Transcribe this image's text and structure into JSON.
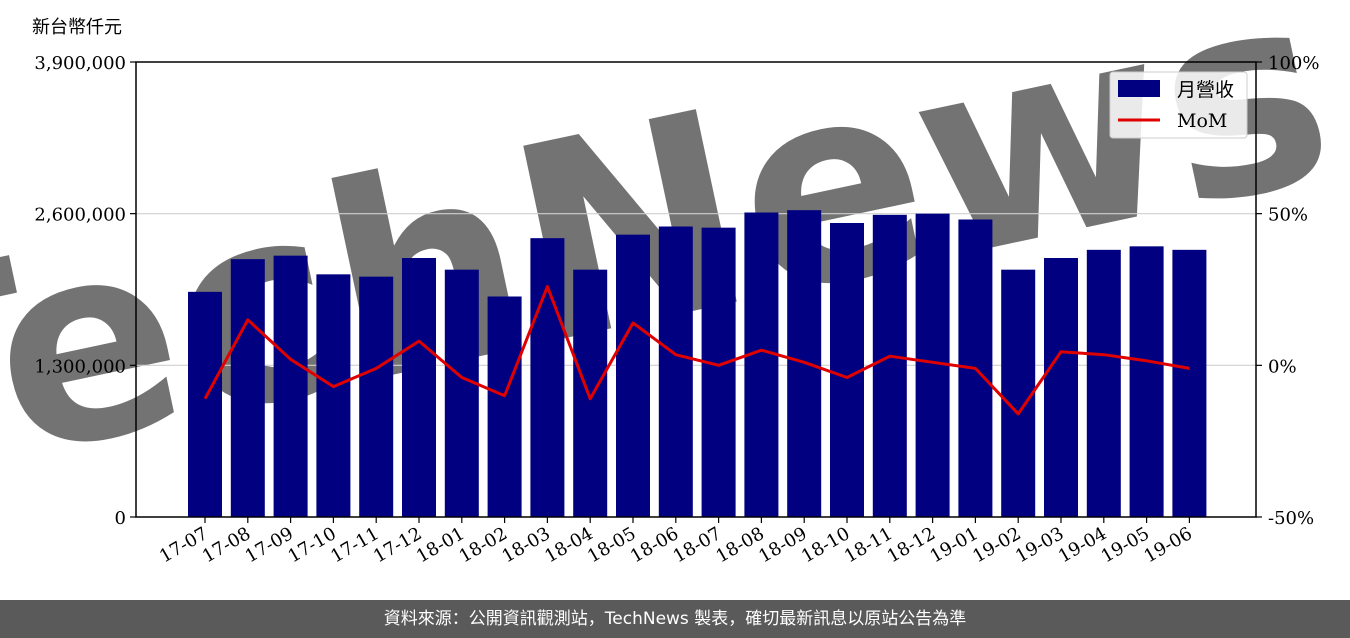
{
  "chart_data": {
    "type": "bar",
    "y_unit_label": "新台幣仟元",
    "categories": [
      "17-07",
      "17-08",
      "17-09",
      "17-10",
      "17-11",
      "17-12",
      "18-01",
      "18-02",
      "18-03",
      "18-04",
      "18-05",
      "18-06",
      "18-07",
      "18-08",
      "18-09",
      "18-10",
      "18-11",
      "18-12",
      "19-01",
      "19-02",
      "19-03",
      "19-04",
      "19-05",
      "19-06"
    ],
    "series": [
      {
        "name": "月營收",
        "type": "bar",
        "axis": "left",
        "color": "#000080",
        "values": [
          1930000,
          2210000,
          2240000,
          2080000,
          2060000,
          2220000,
          2120000,
          1890000,
          2390000,
          2120000,
          2420000,
          2490000,
          2480000,
          2610000,
          2630000,
          2520000,
          2590000,
          2600000,
          2550000,
          2120000,
          2220000,
          2290000,
          2320000,
          2290000
        ]
      },
      {
        "name": "MoM",
        "type": "line",
        "axis": "right",
        "color": "#e00000",
        "values": [
          -11,
          15,
          2,
          -7,
          -1,
          8,
          -4,
          -10,
          26,
          -11,
          14,
          3.5,
          0,
          5,
          1,
          -4,
          3,
          1,
          -1,
          -16,
          4.5,
          3.5,
          1.5,
          -1
        ]
      }
    ],
    "y_left_ticks": [
      "0",
      "1,300,000",
      "2,600,000",
      "3,900,000"
    ],
    "y_left_range": [
      0,
      3900000
    ],
    "y_right_ticks": [
      "-50%",
      "0%",
      "50%",
      "100%"
    ],
    "y_right_range": [
      -50,
      100
    ],
    "grid": "horizontal",
    "legend_position": "top-right",
    "watermark": "TechNews"
  },
  "footer": {
    "source_text": "資料來源：公開資訊觀測站，TechNews 製表，確切最新訊息以原站公告為準"
  }
}
